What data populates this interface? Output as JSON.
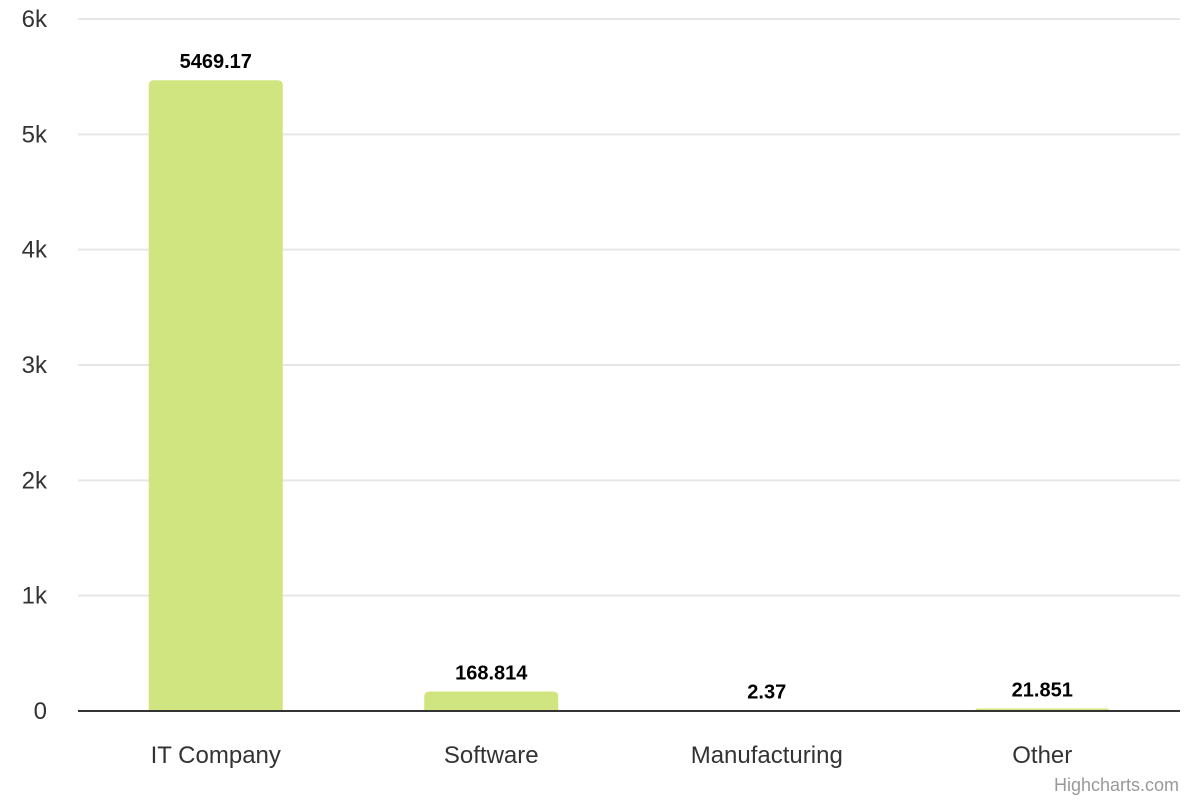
{
  "chart_data": {
    "type": "bar",
    "categories": [
      "IT Company",
      "Software",
      "Manufacturing",
      "Other"
    ],
    "values": [
      5469.17,
      168.814,
      2.37,
      21.851
    ],
    "data_labels": [
      "5469.17",
      "168.814",
      "2.37",
      "21.851"
    ],
    "y_ticks": [
      {
        "value": 0,
        "label": "0"
      },
      {
        "value": 1000,
        "label": "1k"
      },
      {
        "value": 2000,
        "label": "2k"
      },
      {
        "value": 3000,
        "label": "3k"
      },
      {
        "value": 4000,
        "label": "4k"
      },
      {
        "value": 5000,
        "label": "5k"
      },
      {
        "value": 6000,
        "label": "6k"
      }
    ],
    "ylim": [
      0,
      6000
    ],
    "title": "",
    "xlabel": "",
    "ylabel": "",
    "grid": true,
    "legend": "none",
    "bar_color": "#d0e57f",
    "grid_color": "#e6e6e6",
    "axis_color": "#333333"
  },
  "credits": "Highcharts.com"
}
